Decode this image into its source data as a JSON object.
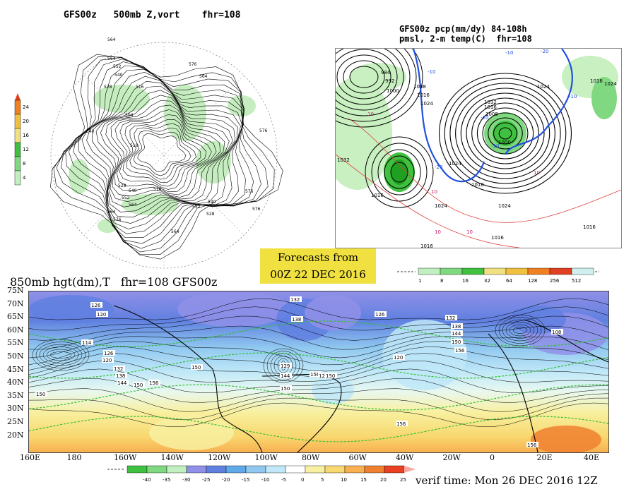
{
  "panel_500mb": {
    "title": "GFS00z   500mb Z,vort    fhr=108",
    "colorbar_ticks": [
      "24",
      "20",
      "16",
      "12",
      "8",
      "4"
    ],
    "colorbar_colors": [
      "#f08020",
      "#f0c040",
      "#f0e080",
      "#40c040",
      "#80d880",
      "#c0f0c0"
    ],
    "contour_labels": [
      "564",
      "564",
      "552",
      "540",
      "576",
      "564",
      "528",
      "516",
      "504",
      "540",
      "516",
      "528",
      "540",
      "552",
      "564",
      "576",
      "576",
      "576",
      "564",
      "576",
      "564",
      "552",
      "540",
      "528",
      "516"
    ]
  },
  "panel_pcp": {
    "title_line1": "GFS00z pcp(mm/dy) 84-108h",
    "title_line2": "pmsl, 2-m temp(C)  fhr=108",
    "colorbar_ticks": [
      "1",
      "8",
      "16",
      "32",
      "64",
      "128",
      "256",
      "512"
    ],
    "colorbar_colors": [
      "#c0f0c0",
      "#80d880",
      "#40c040",
      "#f0e080",
      "#f0c040",
      "#f08020",
      "#e04020",
      "#d0f0f0"
    ],
    "isobar_labels": [
      "984",
      "992",
      "1000",
      "1008",
      "1016",
      "1024",
      "1032",
      "1024",
      "1016",
      "1008",
      "1000",
      "1016",
      "1024",
      "1032",
      "1024",
      "1016",
      "1016",
      "1024",
      "1024",
      "1016",
      "1016",
      "1016"
    ],
    "temp_labels": [
      "-10",
      "-20",
      "-10",
      "-20",
      "-10",
      "-20",
      "-10",
      "10",
      "10",
      "10",
      "10",
      "10"
    ]
  },
  "forecast_box": {
    "line1": "Forecasts from",
    "line2": "00Z 22 DEC 2016"
  },
  "panel_850mb": {
    "title": "850mb hgt(dm),T   fhr=108 GFS00z",
    "lat_labels": [
      "75N",
      "70N",
      "65N",
      "60N",
      "55N",
      "50N",
      "45N",
      "40N",
      "35N",
      "30N",
      "25N",
      "20N"
    ],
    "lon_labels": [
      "160E",
      "180",
      "160W",
      "140W",
      "120W",
      "100W",
      "80W",
      "60W",
      "40W",
      "20W",
      "0",
      "20E",
      "40E"
    ],
    "contour_labels": [
      "126",
      "120",
      "114",
      "126",
      "120",
      "132",
      "138",
      "144",
      "150",
      "156",
      "150",
      "132",
      "138",
      "126",
      "129",
      "144",
      "150",
      "156",
      "126",
      "120",
      "132",
      "138",
      "144",
      "150",
      "156",
      "108",
      "156",
      "150",
      "150",
      "156"
    ],
    "colorbar_ticks": [
      "-40",
      "-35",
      "-30",
      "-25",
      "-20",
      "-15",
      "-10",
      "-5",
      "0",
      "5",
      "10",
      "15",
      "20",
      "25"
    ],
    "colorbar_colors": [
      "#40c040",
      "#80d880",
      "#c0f0c0",
      "#9090e8",
      "#6080e0",
      "#60a8e8",
      "#90c8f0",
      "#c0e8f8",
      "#ffffff",
      "#f8f0a0",
      "#f8d870",
      "#f8b050",
      "#f08030",
      "#e84020"
    ]
  },
  "verif_time": "verif time: Mon 26 DEC 2016 12Z"
}
